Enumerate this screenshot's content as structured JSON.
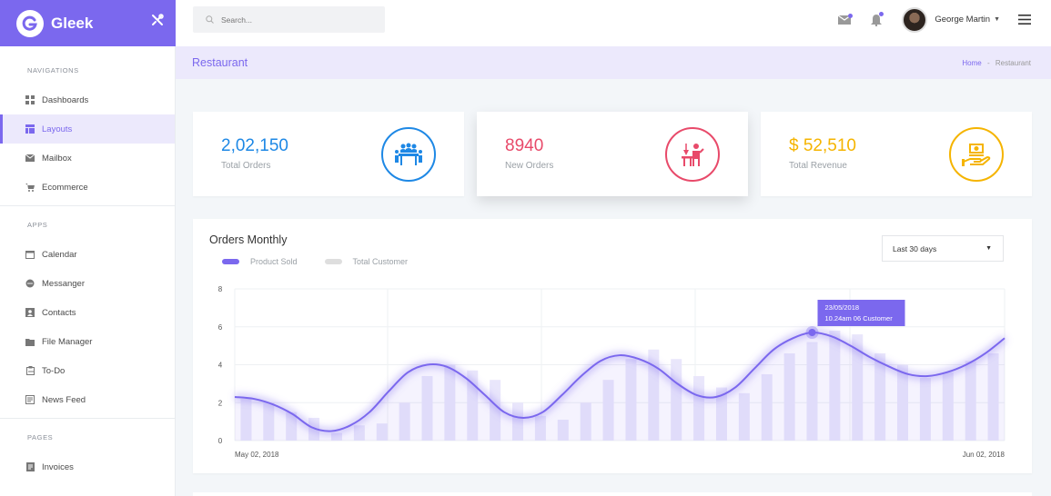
{
  "brand": {
    "name": "Gleek",
    "accent": "#7b68ee"
  },
  "sidebar": {
    "sections": [
      {
        "title": "NAVIGATIONS",
        "items": [
          {
            "label": "Dashboards",
            "icon": "grid-icon"
          },
          {
            "label": "Layouts",
            "icon": "layout-icon",
            "active": true
          },
          {
            "label": "Mailbox",
            "icon": "mail-icon"
          },
          {
            "label": "Ecommerce",
            "icon": "cart-icon"
          }
        ]
      },
      {
        "title": "APPS",
        "items": [
          {
            "label": "Calendar",
            "icon": "calendar-icon"
          },
          {
            "label": "Messanger",
            "icon": "chat-icon"
          },
          {
            "label": "Contacts",
            "icon": "contact-icon"
          },
          {
            "label": "File Manager",
            "icon": "folder-icon"
          },
          {
            "label": "To-Do",
            "icon": "clipboard-icon"
          },
          {
            "label": "News Feed",
            "icon": "news-icon"
          }
        ]
      },
      {
        "title": "PAGES",
        "items": [
          {
            "label": "Invoices",
            "icon": "invoice-icon"
          }
        ]
      }
    ]
  },
  "topbar": {
    "search_placeholder": "Search...",
    "user_name": "George Martin"
  },
  "page": {
    "title": "Restaurant",
    "breadcrumb": {
      "home": "Home",
      "separator": "-",
      "current": "Restaurant"
    }
  },
  "stats": [
    {
      "value": "2,02,150",
      "label": "Total Orders",
      "color": "#1e88e5"
    },
    {
      "value": "8940",
      "label": "New Orders",
      "color": "#e84a6a"
    },
    {
      "value": "$ 52,510",
      "label": "Total Revenue",
      "color": "#f5b400"
    }
  ],
  "orders_chart": {
    "title": "Orders Monthly",
    "range_label": "Last 30 days",
    "legend": [
      {
        "name": "Product Sold",
        "color": "#7b68ee"
      },
      {
        "name": "Total Customer",
        "color": "#dedede"
      }
    ],
    "tooltip": {
      "line1": "23/05/2018",
      "line2": "10.24am  06 Customer"
    }
  },
  "chart_data": {
    "type": "line",
    "x_start_label": "May 02, 2018",
    "x_end_label": "Jun 02, 2018",
    "ylim": [
      0,
      8
    ],
    "yticks": [
      "0",
      "2",
      "4",
      "6",
      "8"
    ],
    "grid": true,
    "series": [
      {
        "name": "Product Sold",
        "type": "line",
        "values": [
          2.3,
          2.2,
          1.9,
          1.4,
          0.7,
          0.5,
          0.8,
          1.5,
          2.6,
          3.6,
          4.0,
          3.9,
          3.3,
          2.4,
          1.5,
          1.2,
          1.5,
          2.4,
          3.4,
          4.2,
          4.5,
          4.3,
          3.8,
          3.0,
          2.4,
          2.3,
          2.8,
          3.8,
          4.8,
          5.4,
          5.7,
          5.5,
          5.0,
          4.4,
          3.9,
          3.5,
          3.4,
          3.6,
          4.0,
          4.6,
          5.4
        ]
      },
      {
        "name": "Total Customer",
        "type": "bar",
        "values": [
          2.2,
          2.0,
          1.5,
          1.2,
          0.4,
          0.8,
          0.9,
          2.0,
          3.4,
          4.0,
          3.7,
          3.2,
          2.0,
          1.3,
          1.1,
          2.0,
          3.2,
          4.3,
          4.8,
          4.3,
          3.4,
          2.8,
          2.5,
          3.5,
          4.6,
          5.2,
          5.8,
          5.6,
          4.6,
          4.0,
          3.3,
          3.6,
          4.2,
          4.6
        ]
      }
    ],
    "highlight": {
      "index": 30,
      "value": 5.7
    }
  }
}
